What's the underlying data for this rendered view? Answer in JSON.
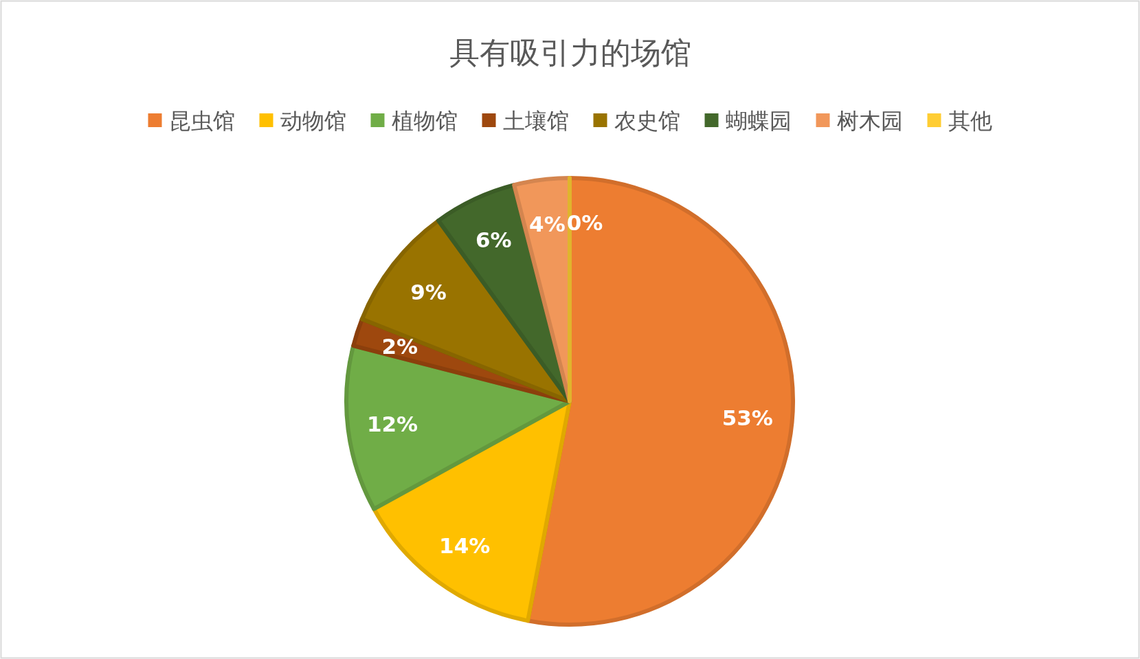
{
  "chart_data": {
    "type": "pie",
    "title": "具有吸引力的场馆",
    "categories": [
      "昆虫馆",
      "动物馆",
      "植物馆",
      "土壤馆",
      "农史馆",
      "蝴蝶园",
      "树木园",
      "其他"
    ],
    "values": [
      53,
      14,
      12,
      2,
      9,
      6,
      4,
      0
    ],
    "colors": [
      "#ed7d31",
      "#ffc000",
      "#70ad47",
      "#9e480e",
      "#997300",
      "#43682b",
      "#f1975a",
      "#ffcd33"
    ],
    "value_labels": [
      "53%",
      "14%",
      "12%",
      "2%",
      "9%",
      "6%",
      "4%",
      "0%"
    ],
    "legend": "top"
  }
}
